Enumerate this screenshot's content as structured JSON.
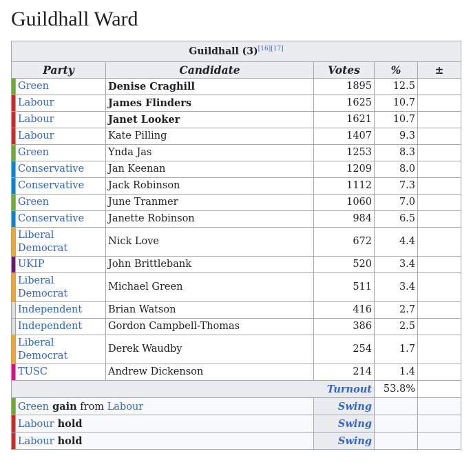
{
  "title": "Guildhall Ward",
  "table": {
    "caption": "Guildhall (3)",
    "refs": [
      "[16]",
      "[17]"
    ],
    "headers": {
      "party": "Party",
      "candidate": "Candidate",
      "votes": "Votes",
      "pct": "%",
      "change": "±"
    },
    "colors": {
      "Green": "#6ab023",
      "Labour": "#dc241f",
      "Conservative": "#0087dc",
      "Liberal Democrat": "#faa61a",
      "UKIP": "#70147a",
      "Independent": "#dddddd",
      "TUSC": "#ec008c"
    },
    "rows": [
      {
        "party": "Green",
        "party_label": "Green",
        "candidate": "Denise Craghill",
        "elected": true,
        "votes": "1895",
        "pct": "12.5"
      },
      {
        "party": "Labour",
        "party_label": "Labour",
        "candidate": "James Flinders",
        "elected": true,
        "votes": "1625",
        "pct": "10.7"
      },
      {
        "party": "Labour",
        "party_label": "Labour",
        "candidate": "Janet Looker",
        "elected": true,
        "votes": "1621",
        "pct": "10.7"
      },
      {
        "party": "Labour",
        "party_label": "Labour",
        "candidate": "Kate Pilling",
        "elected": false,
        "votes": "1407",
        "pct": "9.3"
      },
      {
        "party": "Green",
        "party_label": "Green",
        "candidate": "Ynda Jas",
        "elected": false,
        "votes": "1253",
        "pct": "8.3"
      },
      {
        "party": "Conservative",
        "party_label": "Conservative",
        "candidate": "Jan Keenan",
        "elected": false,
        "votes": "1209",
        "pct": "8.0"
      },
      {
        "party": "Conservative",
        "party_label": "Conservative",
        "candidate": "Jack Robinson",
        "elected": false,
        "votes": "1112",
        "pct": "7.3"
      },
      {
        "party": "Green",
        "party_label": "Green",
        "candidate": "June Tranmer",
        "elected": false,
        "votes": "1060",
        "pct": "7.0"
      },
      {
        "party": "Conservative",
        "party_label": "Conservative",
        "candidate": "Janette Robinson",
        "elected": false,
        "votes": "984",
        "pct": "6.5"
      },
      {
        "party": "Liberal Democrat",
        "party_label": [
          "Liberal",
          "Democrat"
        ],
        "candidate": "Nick Love",
        "elected": false,
        "votes": "672",
        "pct": "4.4"
      },
      {
        "party": "UKIP",
        "party_label": "UKIP",
        "candidate": "John Brittlebank",
        "elected": false,
        "votes": "520",
        "pct": "3.4"
      },
      {
        "party": "Liberal Democrat",
        "party_label": [
          "Liberal",
          "Democrat"
        ],
        "candidate": "Michael Green",
        "elected": false,
        "votes": "511",
        "pct": "3.4"
      },
      {
        "party": "Independent",
        "party_label": "Independent",
        "candidate": "Brian Watson",
        "elected": false,
        "votes": "416",
        "pct": "2.7"
      },
      {
        "party": "Independent",
        "party_label": "Independent",
        "candidate": "Gordon Campbell-Thomas",
        "elected": false,
        "votes": "386",
        "pct": "2.5"
      },
      {
        "party": "Liberal Democrat",
        "party_label": [
          "Liberal",
          "Democrat"
        ],
        "candidate": "Derek Waudby",
        "elected": false,
        "votes": "254",
        "pct": "1.7"
      },
      {
        "party": "TUSC",
        "party_label": "TUSC",
        "candidate": "Andrew Dickenson",
        "elected": false,
        "votes": "214",
        "pct": "1.4"
      }
    ],
    "turnout": {
      "label": "Turnout",
      "pct": "53.8%"
    },
    "results": [
      {
        "party": "Green",
        "parts": [
          {
            "t": "Green",
            "k": "link"
          },
          {
            "t": " gain",
            "k": "bold"
          },
          {
            "t": " from ",
            "k": "plain"
          },
          {
            "t": "Labour",
            "k": "link"
          }
        ],
        "swing": "Swing"
      },
      {
        "party": "Labour",
        "parts": [
          {
            "t": "Labour",
            "k": "link"
          },
          {
            "t": " hold",
            "k": "bold"
          }
        ],
        "swing": "Swing"
      },
      {
        "party": "Labour",
        "parts": [
          {
            "t": "Labour",
            "k": "link"
          },
          {
            "t": " hold",
            "k": "bold"
          }
        ],
        "swing": "Swing"
      }
    ]
  }
}
